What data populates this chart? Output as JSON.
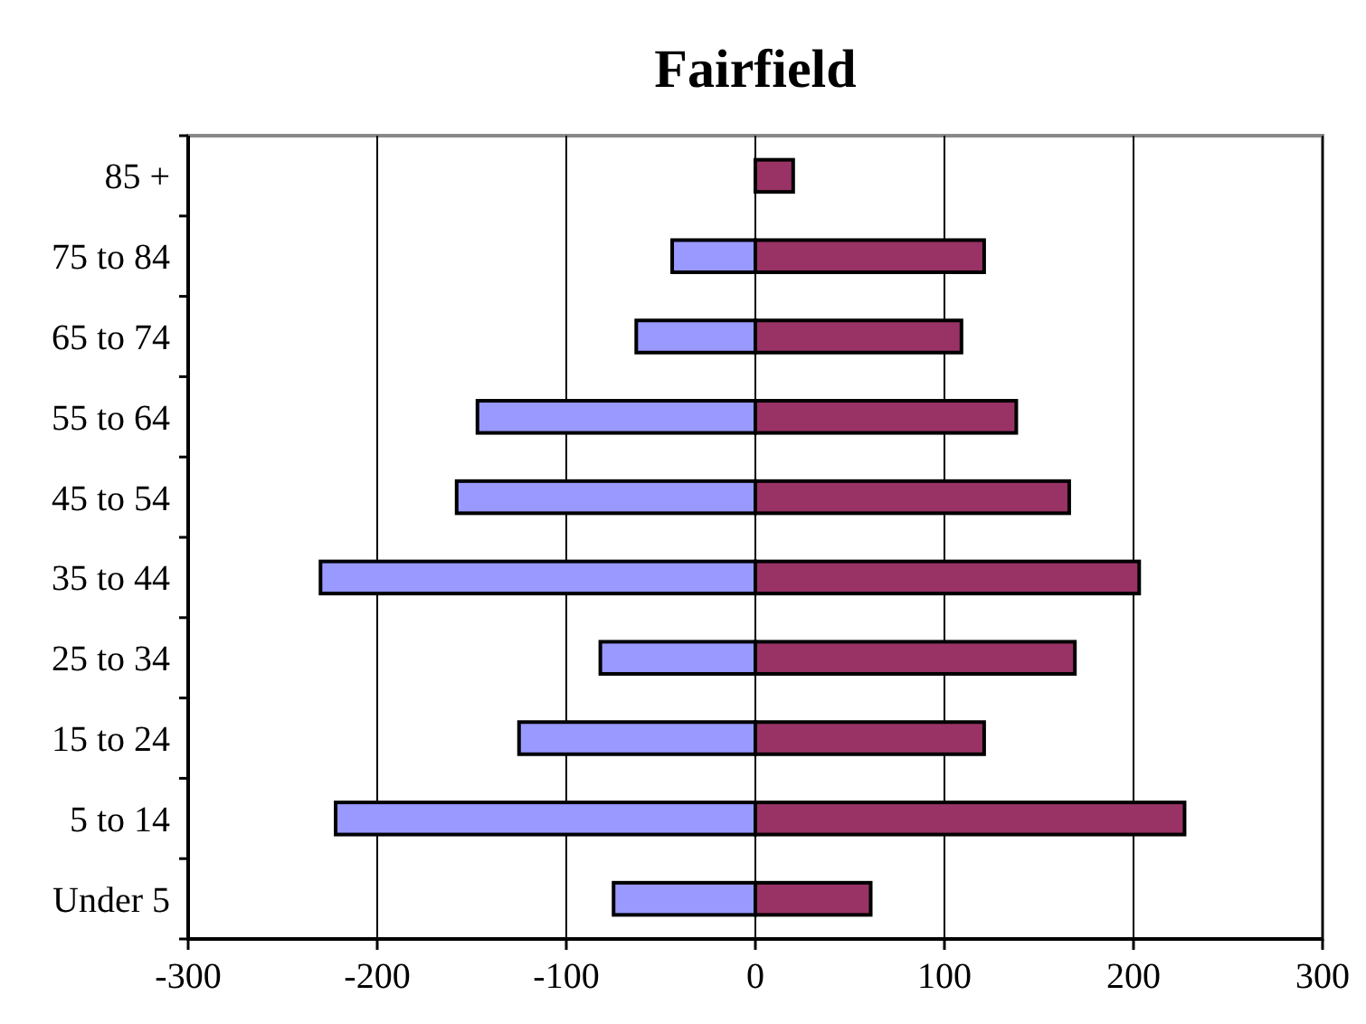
{
  "chart_data": {
    "type": "bar",
    "orientation": "horizontal",
    "stacked": true,
    "title": "Fairfield",
    "categories": [
      "85 +",
      "75 to 84",
      "65 to 74",
      "55 to 64",
      "45 to 54",
      "35 to 44",
      "25 to 34",
      "15 to 24",
      "5 to 14",
      "Under 5"
    ],
    "series": [
      {
        "color": "#9999ff",
        "values": [
          0,
          -44,
          -63,
          -147,
          -158,
          -230,
          -82,
          -125,
          -222,
          -75
        ]
      },
      {
        "color": "#993366",
        "values": [
          20,
          121,
          109,
          138,
          166,
          203,
          169,
          121,
          227,
          61
        ]
      }
    ],
    "xlim": [
      -300,
      300
    ],
    "xticks": [
      -300,
      -200,
      -100,
      0,
      100,
      200,
      300
    ],
    "grid": "x"
  }
}
